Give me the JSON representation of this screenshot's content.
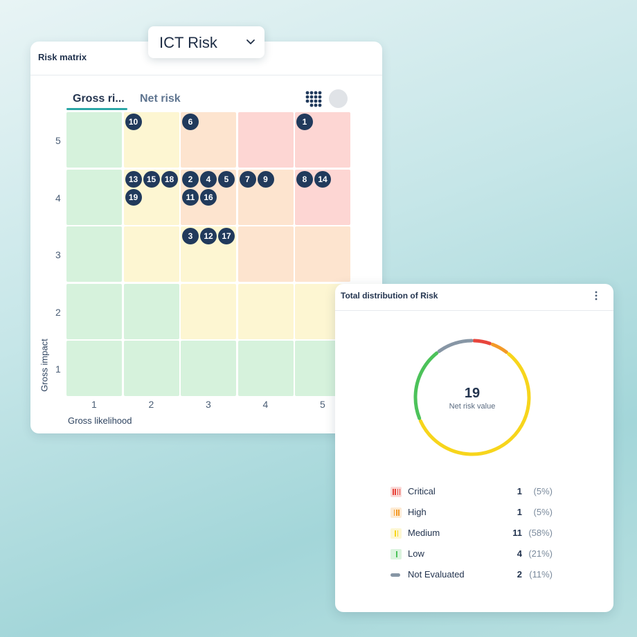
{
  "dropdown": {
    "value": "ICT Risk"
  },
  "risk_matrix": {
    "title": "Risk matrix",
    "tabs": [
      {
        "label": "Gross ri...",
        "active": true
      },
      {
        "label": "Net risk",
        "active": false
      }
    ],
    "x_axis_label": "Gross likelihood",
    "y_axis_label": "Gross impact",
    "x_ticks": [
      "1",
      "2",
      "3",
      "4",
      "5"
    ],
    "y_ticks": [
      "5",
      "4",
      "3",
      "2",
      "1"
    ],
    "cells": [
      [
        "low",
        "medium",
        "high",
        "critical",
        "critical"
      ],
      [
        "low",
        "medium",
        "high",
        "high",
        "critical"
      ],
      [
        "low",
        "medium",
        "medium",
        "high",
        "high"
      ],
      [
        "low",
        "low",
        "medium",
        "medium",
        "medium"
      ],
      [
        "low",
        "low",
        "low",
        "low",
        "low"
      ]
    ],
    "colors": {
      "low": "#d6f2dc",
      "medium": "#fdf6d2",
      "high": "#fde4cf",
      "critical": "#fdd6d3"
    },
    "risks": [
      {
        "id": "10",
        "likelihood": 2,
        "impact": 5
      },
      {
        "id": "6",
        "likelihood": 3,
        "impact": 5
      },
      {
        "id": "1",
        "likelihood": 5,
        "impact": 5
      },
      {
        "id": "13",
        "likelihood": 2,
        "impact": 4
      },
      {
        "id": "15",
        "likelihood": 2,
        "impact": 4
      },
      {
        "id": "18",
        "likelihood": 2,
        "impact": 4
      },
      {
        "id": "19",
        "likelihood": 2,
        "impact": 4
      },
      {
        "id": "2",
        "likelihood": 3,
        "impact": 4
      },
      {
        "id": "4",
        "likelihood": 3,
        "impact": 4
      },
      {
        "id": "5",
        "likelihood": 3,
        "impact": 4
      },
      {
        "id": "11",
        "likelihood": 3,
        "impact": 4
      },
      {
        "id": "16",
        "likelihood": 3,
        "impact": 4
      },
      {
        "id": "7",
        "likelihood": 4,
        "impact": 4
      },
      {
        "id": "9",
        "likelihood": 4,
        "impact": 4
      },
      {
        "id": "8",
        "likelihood": 5,
        "impact": 4
      },
      {
        "id": "14",
        "likelihood": 5,
        "impact": 4
      },
      {
        "id": "3",
        "likelihood": 3,
        "impact": 3
      },
      {
        "id": "12",
        "likelihood": 3,
        "impact": 3
      },
      {
        "id": "17",
        "likelihood": 3,
        "impact": 3
      }
    ]
  },
  "distribution": {
    "title": "Total distribution of Risk",
    "total": "19",
    "total_label": "Net risk value",
    "items": [
      {
        "label": "Critical",
        "count": "1",
        "pct": "(5%)",
        "color": "#e8453c",
        "value": 1
      },
      {
        "label": "High",
        "count": "1",
        "pct": "(5%)",
        "color": "#f39a28",
        "value": 1
      },
      {
        "label": "Medium",
        "count": "11",
        "pct": "(58%)",
        "color": "#f7d51c",
        "value": 11
      },
      {
        "label": "Low",
        "count": "4",
        "pct": "(21%)",
        "color": "#4cc25a",
        "value": 4
      },
      {
        "label": "Not Evaluated",
        "count": "2",
        "pct": "(11%)",
        "color": "#8796a5",
        "value": 2
      }
    ]
  }
}
